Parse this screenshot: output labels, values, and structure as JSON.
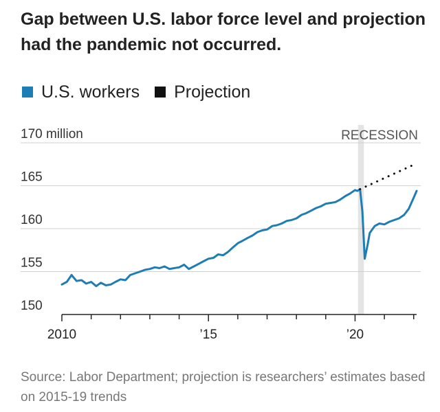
{
  "title": "Gap between U.S. labor force level and projection had the pandemic not occurred.",
  "legend": {
    "workers": "U.S. workers",
    "projection": "Projection"
  },
  "colors": {
    "workers": "#1d7db4",
    "projection": "#111111",
    "recession": "#e4e4e4",
    "grid": "#d0d0d0"
  },
  "source": "Source: Labor Department; projection is researchers’ estimates based on 2015-19 trends",
  "chart_data": {
    "type": "line",
    "title": "Gap between U.S. labor force level and projection had the pandemic not occurred.",
    "xlabel": "",
    "ylabel": "",
    "ylim": [
      150,
      170
    ],
    "xlim": [
      2010,
      2022.1
    ],
    "grid": true,
    "legend_position": "top-left",
    "y_ticks": [
      {
        "value": 170,
        "label": "170 million"
      },
      {
        "value": 165,
        "label": "165"
      },
      {
        "value": 160,
        "label": "160"
      },
      {
        "value": 155,
        "label": "155"
      },
      {
        "value": 150,
        "label": "150"
      }
    ],
    "x_ticks": [
      {
        "value": 2010,
        "label": "2010"
      },
      {
        "value": 2015,
        "label": "’15"
      },
      {
        "value": 2020,
        "label": "’20"
      }
    ],
    "annotation": {
      "label": "RECESSION",
      "x_start": 2020.1,
      "x_end": 2020.3
    },
    "series": [
      {
        "name": "U.S. workers",
        "style": "solid",
        "points": [
          [
            2010.0,
            153.5
          ],
          [
            2010.17,
            153.8
          ],
          [
            2010.33,
            154.6
          ],
          [
            2010.5,
            153.9
          ],
          [
            2010.67,
            154.0
          ],
          [
            2010.83,
            153.6
          ],
          [
            2011.0,
            153.8
          ],
          [
            2011.17,
            153.3
          ],
          [
            2011.33,
            153.7
          ],
          [
            2011.5,
            153.4
          ],
          [
            2011.67,
            153.5
          ],
          [
            2011.83,
            153.8
          ],
          [
            2012.0,
            154.1
          ],
          [
            2012.17,
            154.0
          ],
          [
            2012.33,
            154.6
          ],
          [
            2012.5,
            154.8
          ],
          [
            2012.67,
            155.0
          ],
          [
            2012.83,
            155.2
          ],
          [
            2013.0,
            155.3
          ],
          [
            2013.17,
            155.5
          ],
          [
            2013.33,
            155.4
          ],
          [
            2013.5,
            155.6
          ],
          [
            2013.67,
            155.3
          ],
          [
            2013.83,
            155.4
          ],
          [
            2014.0,
            155.5
          ],
          [
            2014.17,
            155.8
          ],
          [
            2014.33,
            155.3
          ],
          [
            2014.5,
            155.6
          ],
          [
            2014.67,
            155.9
          ],
          [
            2014.83,
            156.2
          ],
          [
            2015.0,
            156.5
          ],
          [
            2015.17,
            156.6
          ],
          [
            2015.33,
            157.0
          ],
          [
            2015.5,
            156.9
          ],
          [
            2015.67,
            157.3
          ],
          [
            2015.83,
            157.8
          ],
          [
            2016.0,
            158.3
          ],
          [
            2016.17,
            158.6
          ],
          [
            2016.33,
            158.9
          ],
          [
            2016.5,
            159.2
          ],
          [
            2016.67,
            159.6
          ],
          [
            2016.83,
            159.8
          ],
          [
            2017.0,
            159.9
          ],
          [
            2017.17,
            160.3
          ],
          [
            2017.33,
            160.4
          ],
          [
            2017.5,
            160.6
          ],
          [
            2017.67,
            160.9
          ],
          [
            2017.83,
            161.0
          ],
          [
            2018.0,
            161.2
          ],
          [
            2018.17,
            161.6
          ],
          [
            2018.33,
            161.8
          ],
          [
            2018.5,
            162.1
          ],
          [
            2018.67,
            162.4
          ],
          [
            2018.83,
            162.6
          ],
          [
            2019.0,
            162.9
          ],
          [
            2019.17,
            163.0
          ],
          [
            2019.33,
            163.1
          ],
          [
            2019.5,
            163.4
          ],
          [
            2019.67,
            163.8
          ],
          [
            2019.83,
            164.1
          ],
          [
            2020.0,
            164.5
          ],
          [
            2020.08,
            164.4
          ],
          [
            2020.17,
            164.6
          ],
          [
            2020.25,
            162.0
          ],
          [
            2020.33,
            156.5
          ],
          [
            2020.42,
            158.0
          ],
          [
            2020.5,
            159.5
          ],
          [
            2020.67,
            160.3
          ],
          [
            2020.83,
            160.6
          ],
          [
            2021.0,
            160.5
          ],
          [
            2021.17,
            160.8
          ],
          [
            2021.33,
            161.0
          ],
          [
            2021.5,
            161.2
          ],
          [
            2021.67,
            161.6
          ],
          [
            2021.83,
            162.3
          ],
          [
            2022.0,
            163.6
          ],
          [
            2022.1,
            164.4
          ]
        ]
      },
      {
        "name": "Projection",
        "style": "dotted",
        "points": [
          [
            2020.17,
            164.6
          ],
          [
            2022.1,
            167.6
          ]
        ]
      }
    ]
  }
}
